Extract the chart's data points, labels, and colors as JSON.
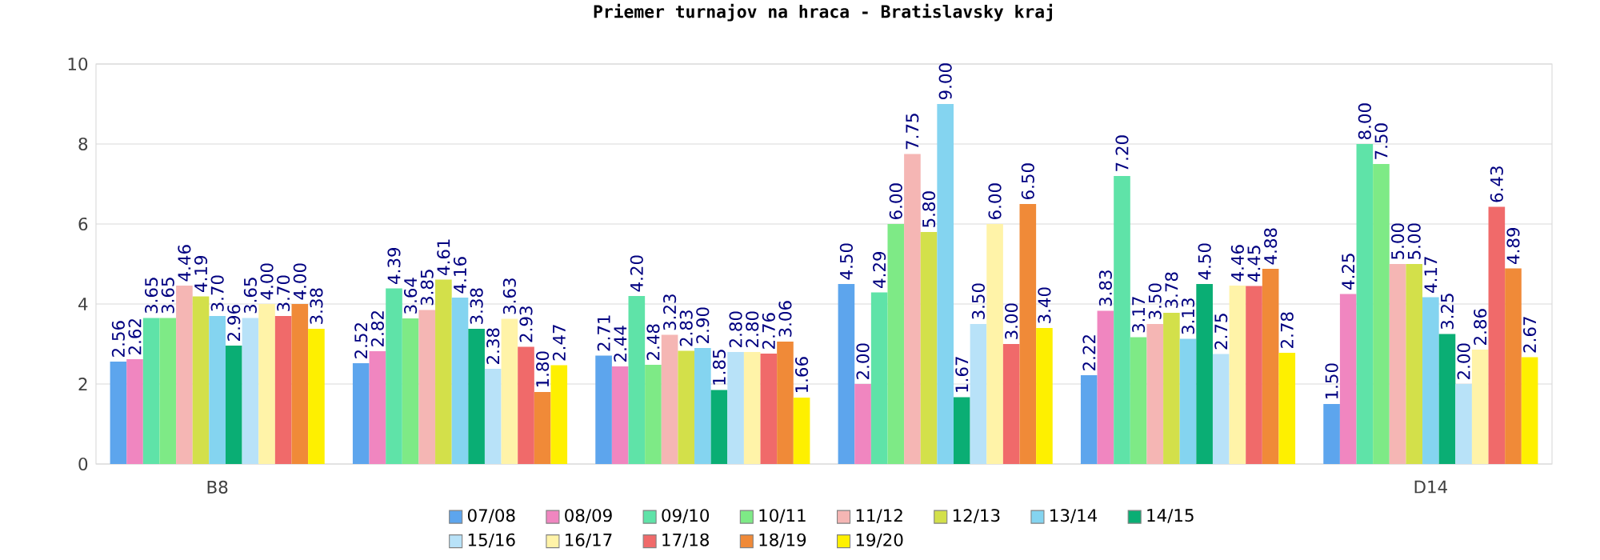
{
  "chart_data": {
    "type": "bar",
    "title": "Priemer turnajov na hraca - Bratislavsky kraj",
    "categories": [
      "B8",
      null,
      null,
      null,
      null,
      "D14"
    ],
    "ylim": [
      0,
      10
    ],
    "yticks": [
      0,
      2,
      4,
      6,
      8,
      10
    ],
    "grid": "y",
    "legend": "bottom",
    "series": [
      {
        "name": "07/08",
        "color": "#5da5ed",
        "values": [
          2.56,
          2.52,
          2.71,
          4.5,
          2.22,
          1.5
        ],
        "value_labels": [
          "2.56",
          "2.52",
          "2.71",
          "4.50",
          "2.22",
          "1.50"
        ]
      },
      {
        "name": "08/09",
        "color": "#f086c0",
        "values": [
          2.62,
          2.82,
          2.44,
          2.0,
          3.83,
          4.25
        ],
        "value_labels": [
          "2.62",
          "2.82",
          "2.44",
          "2.00",
          "3.83",
          "4.25"
        ]
      },
      {
        "name": "09/10",
        "color": "#5fe3a8",
        "values": [
          3.65,
          4.39,
          4.2,
          4.29,
          7.2,
          8.0
        ],
        "value_labels": [
          "3.65",
          "4.39",
          "4.20",
          "4.29",
          "7.20",
          "8.00"
        ]
      },
      {
        "name": "10/11",
        "color": "#7eea86",
        "values": [
          3.65,
          3.64,
          2.48,
          6.0,
          3.17,
          7.5
        ],
        "value_labels": [
          "3.65",
          "3.64",
          "2.48",
          "6.00",
          "3.17",
          "7.50"
        ]
      },
      {
        "name": "11/12",
        "color": "#f5b6b4",
        "values": [
          4.46,
          3.85,
          3.23,
          7.75,
          3.5,
          5.0
        ],
        "value_labels": [
          "4.46",
          "3.85",
          "3.23",
          "7.75",
          "3.50",
          "5.00"
        ]
      },
      {
        "name": "12/13",
        "color": "#d3e04a",
        "values": [
          4.19,
          4.61,
          2.83,
          5.8,
          3.78,
          5.0
        ],
        "value_labels": [
          "4.19",
          "4.61",
          "2.83",
          "5.80",
          "3.78",
          "5.00"
        ]
      },
      {
        "name": "13/14",
        "color": "#84d4f0",
        "values": [
          3.7,
          4.16,
          2.9,
          9.0,
          3.13,
          4.17
        ],
        "value_labels": [
          "3.70",
          "4.16",
          "2.90",
          "9.00",
          "3.13",
          "4.17"
        ]
      },
      {
        "name": "14/15",
        "color": "#0aae74",
        "values": [
          2.96,
          3.38,
          1.85,
          1.67,
          4.5,
          3.25
        ],
        "value_labels": [
          "2.96",
          "3.38",
          "1.85",
          "1.67",
          "4.50",
          "3.25"
        ]
      },
      {
        "name": "15/16",
        "color": "#b8e2f8",
        "values": [
          3.65,
          2.38,
          2.8,
          3.5,
          2.75,
          2.0
        ],
        "value_labels": [
          "3.65",
          "2.38",
          "2.80",
          "3.50",
          "2.75",
          "2.00"
        ]
      },
      {
        "name": "16/17",
        "color": "#fff3a8",
        "values": [
          4.0,
          3.63,
          2.8,
          6.0,
          4.46,
          2.86
        ],
        "value_labels": [
          "4.00",
          "3.63",
          "2.80",
          "6.00",
          "4.46",
          "2.86"
        ]
      },
      {
        "name": "17/18",
        "color": "#f06a6a",
        "values": [
          3.7,
          2.93,
          2.76,
          3.0,
          4.45,
          6.43
        ],
        "value_labels": [
          "3.70",
          "2.93",
          "2.76",
          "3.00",
          "4.45",
          "6.43"
        ]
      },
      {
        "name": "18/19",
        "color": "#f08a38",
        "values": [
          4.0,
          1.8,
          3.06,
          6.5,
          4.88,
          4.89
        ],
        "value_labels": [
          "4.00",
          "1.80",
          "3.06",
          "6.50",
          "4.88",
          "4.89"
        ]
      },
      {
        "name": "19/20",
        "color": "#fef000",
        "values": [
          3.38,
          2.47,
          1.66,
          3.4,
          2.78,
          2.67
        ],
        "value_labels": [
          "3.38",
          "2.47",
          "1.66",
          "3.40",
          "2.78",
          "2.67"
        ]
      }
    ]
  }
}
